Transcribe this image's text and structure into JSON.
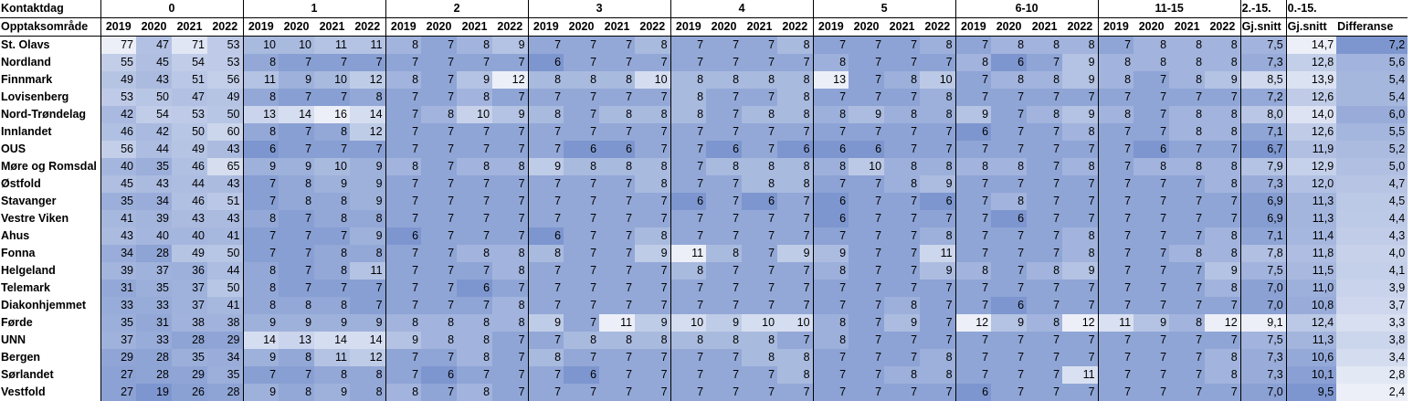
{
  "header": {
    "corner_top": "Kontaktdag",
    "corner_bottom": "Opptaksområde",
    "groups": [
      "0",
      "1",
      "2",
      "3",
      "4",
      "5",
      "6-10",
      "11-15"
    ],
    "years": [
      "2019",
      "2020",
      "2021",
      "2022"
    ],
    "avg1_top": "2.-15.",
    "avg1_bottom": "Gj.snitt",
    "avg2_top": "0.-15.",
    "avg2_bottom": "Gj.snitt",
    "diff_label": "Differanse"
  },
  "colors": {
    "low": "#ffffff",
    "high": "#7d96cf"
  },
  "rows": [
    {
      "area": "St. Olavs",
      "values": [
        77,
        47,
        71,
        53,
        10,
        10,
        11,
        11,
        8,
        7,
        8,
        9,
        7,
        7,
        7,
        8,
        7,
        7,
        7,
        8,
        7,
        7,
        7,
        8,
        7,
        8,
        8,
        8,
        7,
        8,
        8,
        8
      ],
      "avg1": "7,5",
      "avg2": "14,7",
      "diff": "7,2"
    },
    {
      "area": "Nordland",
      "values": [
        55,
        45,
        54,
        53,
        8,
        7,
        7,
        7,
        7,
        7,
        7,
        7,
        6,
        7,
        7,
        7,
        7,
        7,
        7,
        7,
        8,
        7,
        7,
        7,
        8,
        6,
        7,
        9,
        8,
        8,
        8,
        8
      ],
      "avg1": "7,3",
      "avg2": "12,8",
      "diff": "5,6"
    },
    {
      "area": "Finnmark",
      "values": [
        49,
        43,
        51,
        56,
        11,
        9,
        10,
        12,
        8,
        7,
        9,
        12,
        8,
        8,
        8,
        10,
        8,
        8,
        8,
        8,
        13,
        7,
        8,
        10,
        7,
        8,
        8,
        9,
        8,
        7,
        8,
        9
      ],
      "avg1": "8,5",
      "avg2": "13,9",
      "diff": "5,4"
    },
    {
      "area": "Lovisenberg",
      "values": [
        53,
        50,
        47,
        49,
        8,
        7,
        7,
        8,
        7,
        7,
        8,
        7,
        7,
        7,
        7,
        7,
        8,
        7,
        7,
        8,
        7,
        7,
        7,
        8,
        7,
        7,
        7,
        7,
        7,
        7,
        7,
        7
      ],
      "avg1": "7,2",
      "avg2": "12,6",
      "diff": "5,4"
    },
    {
      "area": "Nord-Trøndelag",
      "values": [
        42,
        54,
        53,
        50,
        13,
        14,
        16,
        14,
        7,
        8,
        10,
        9,
        8,
        7,
        8,
        8,
        8,
        7,
        8,
        8,
        8,
        9,
        8,
        8,
        9,
        7,
        8,
        9,
        8,
        7,
        8,
        8
      ],
      "avg1": "8,0",
      "avg2": "14,0",
      "diff": "6,0"
    },
    {
      "area": "Innlandet",
      "values": [
        46,
        42,
        50,
        60,
        8,
        7,
        8,
        12,
        7,
        7,
        7,
        7,
        7,
        7,
        7,
        7,
        7,
        7,
        7,
        7,
        7,
        7,
        7,
        7,
        6,
        7,
        7,
        8,
        7,
        7,
        8,
        8
      ],
      "avg1": "7,1",
      "avg2": "12,6",
      "diff": "5,5"
    },
    {
      "area": "OUS",
      "values": [
        56,
        44,
        49,
        43,
        6,
        7,
        7,
        7,
        7,
        7,
        7,
        7,
        7,
        6,
        6,
        7,
        7,
        6,
        7,
        6,
        6,
        6,
        7,
        7,
        7,
        7,
        7,
        7,
        7,
        6,
        7,
        7
      ],
      "avg1": "6,7",
      "avg2": "11,9",
      "diff": "5,2"
    },
    {
      "area": "Møre og Romsdal",
      "values": [
        40,
        35,
        46,
        65,
        9,
        9,
        10,
        9,
        8,
        7,
        8,
        8,
        9,
        8,
        8,
        8,
        7,
        8,
        8,
        8,
        8,
        10,
        8,
        8,
        8,
        8,
        7,
        8,
        7,
        8,
        8,
        8
      ],
      "avg1": "7,9",
      "avg2": "12,9",
      "diff": "5,0"
    },
    {
      "area": "Østfold",
      "values": [
        45,
        43,
        44,
        43,
        7,
        8,
        9,
        9,
        7,
        7,
        7,
        7,
        7,
        7,
        7,
        8,
        7,
        7,
        8,
        8,
        7,
        7,
        8,
        9,
        7,
        7,
        7,
        7,
        7,
        7,
        7,
        8
      ],
      "avg1": "7,3",
      "avg2": "12,0",
      "diff": "4,7"
    },
    {
      "area": "Stavanger",
      "values": [
        35,
        34,
        46,
        51,
        7,
        8,
        8,
        9,
        7,
        7,
        7,
        7,
        7,
        7,
        7,
        7,
        6,
        7,
        6,
        7,
        6,
        7,
        7,
        6,
        7,
        8,
        7,
        7,
        7,
        7,
        7,
        7
      ],
      "avg1": "6,9",
      "avg2": "11,3",
      "diff": "4,5"
    },
    {
      "area": "Vestre Viken",
      "values": [
        41,
        39,
        43,
        43,
        8,
        7,
        8,
        8,
        7,
        7,
        7,
        7,
        7,
        7,
        7,
        7,
        7,
        7,
        7,
        7,
        6,
        7,
        7,
        7,
        7,
        6,
        7,
        7,
        7,
        7,
        7,
        7
      ],
      "avg1": "6,9",
      "avg2": "11,3",
      "diff": "4,4"
    },
    {
      "area": "Ahus",
      "values": [
        43,
        40,
        40,
        41,
        7,
        7,
        7,
        9,
        6,
        7,
        7,
        7,
        6,
        7,
        7,
        8,
        7,
        7,
        7,
        7,
        7,
        7,
        7,
        8,
        7,
        7,
        7,
        8,
        7,
        7,
        7,
        8
      ],
      "avg1": "7,1",
      "avg2": "11,4",
      "diff": "4,3"
    },
    {
      "area": "Fonna",
      "values": [
        34,
        28,
        49,
        50,
        7,
        7,
        8,
        8,
        7,
        7,
        8,
        8,
        8,
        7,
        7,
        9,
        11,
        8,
        7,
        9,
        9,
        7,
        7,
        11,
        7,
        7,
        7,
        8,
        7,
        7,
        8,
        8
      ],
      "avg1": "7,8",
      "avg2": "11,8",
      "diff": "4,0"
    },
    {
      "area": "Helgeland",
      "values": [
        39,
        37,
        36,
        44,
        8,
        7,
        8,
        11,
        7,
        7,
        7,
        8,
        7,
        7,
        7,
        7,
        8,
        7,
        7,
        7,
        8,
        7,
        7,
        9,
        8,
        7,
        8,
        9,
        7,
        7,
        7,
        9
      ],
      "avg1": "7,5",
      "avg2": "11,5",
      "diff": "4,1"
    },
    {
      "area": "Telemark",
      "values": [
        31,
        35,
        37,
        50,
        8,
        7,
        7,
        7,
        7,
        7,
        6,
        7,
        7,
        7,
        7,
        7,
        7,
        7,
        7,
        7,
        7,
        7,
        7,
        7,
        7,
        7,
        7,
        7,
        7,
        7,
        7,
        8
      ],
      "avg1": "7,0",
      "avg2": "11,0",
      "diff": "3,9"
    },
    {
      "area": "Diakonhjemmet",
      "values": [
        33,
        33,
        37,
        41,
        8,
        8,
        8,
        7,
        7,
        7,
        7,
        8,
        7,
        7,
        7,
        7,
        7,
        7,
        7,
        7,
        7,
        7,
        8,
        7,
        7,
        6,
        7,
        7,
        7,
        7,
        7,
        7
      ],
      "avg1": "7,0",
      "avg2": "10,8",
      "diff": "3,7"
    },
    {
      "area": "Førde",
      "values": [
        35,
        31,
        38,
        38,
        9,
        9,
        9,
        9,
        8,
        8,
        8,
        8,
        9,
        7,
        11,
        9,
        10,
        9,
        10,
        10,
        8,
        7,
        9,
        7,
        12,
        9,
        8,
        12,
        11,
        9,
        8,
        12
      ],
      "avg1": "9,1",
      "avg2": "12,4",
      "diff": "3,3"
    },
    {
      "area": "UNN",
      "values": [
        37,
        33,
        28,
        29,
        14,
        13,
        14,
        14,
        9,
        8,
        8,
        7,
        7,
        8,
        8,
        8,
        8,
        8,
        8,
        7,
        8,
        7,
        7,
        7,
        7,
        7,
        7,
        7,
        7,
        7,
        7,
        7
      ],
      "avg1": "7,5",
      "avg2": "11,3",
      "diff": "3,8"
    },
    {
      "area": "Bergen",
      "values": [
        29,
        28,
        35,
        34,
        9,
        8,
        11,
        12,
        7,
        7,
        8,
        7,
        8,
        7,
        7,
        7,
        7,
        7,
        8,
        8,
        7,
        7,
        7,
        8,
        7,
        7,
        7,
        7,
        7,
        7,
        7,
        8
      ],
      "avg1": "7,3",
      "avg2": "10,6",
      "diff": "3,4"
    },
    {
      "area": "Sørlandet",
      "values": [
        27,
        28,
        29,
        35,
        7,
        7,
        8,
        8,
        7,
        6,
        7,
        7,
        7,
        6,
        7,
        7,
        7,
        7,
        7,
        8,
        7,
        7,
        8,
        8,
        7,
        7,
        7,
        11,
        7,
        7,
        7,
        8
      ],
      "avg1": "7,3",
      "avg2": "10,1",
      "diff": "2,8"
    },
    {
      "area": "Vestfold",
      "values": [
        27,
        19,
        26,
        28,
        9,
        8,
        9,
        8,
        8,
        7,
        8,
        7,
        7,
        7,
        7,
        7,
        7,
        7,
        7,
        7,
        7,
        7,
        7,
        7,
        6,
        7,
        7,
        7,
        7,
        7,
        7,
        7
      ],
      "avg1": "7,0",
      "avg2": "9,5",
      "diff": "2,4"
    }
  ]
}
